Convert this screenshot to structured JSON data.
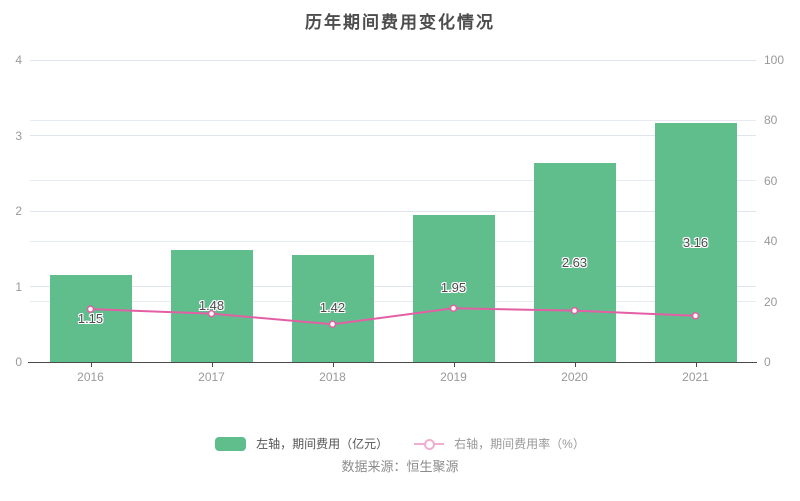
{
  "title": "历年期间费用变化情况",
  "legend": {
    "bar_label": "左轴，期间费用（亿元）",
    "line_label": "右轴，期间费用率（%）"
  },
  "footer": {
    "source": "数据来源：恒生聚源"
  },
  "chart_data": {
    "type": "bar",
    "subtype": "combo bar + line, dual y-axis",
    "title": "历年期间费用变化情况",
    "categories": [
      "2016",
      "2017",
      "2018",
      "2019",
      "2020",
      "2021"
    ],
    "series": [
      {
        "name": "左轴，期间费用（亿元）",
        "type": "bar",
        "y_axis": "left",
        "values": [
          1.15,
          1.48,
          1.42,
          1.95,
          2.63,
          3.16
        ],
        "data_labels": [
          "1.15",
          "1.48",
          "1.42",
          "1.95",
          "2.63",
          "3.16"
        ],
        "color": "#5fbe8c"
      },
      {
        "name": "右轴，期间费用率（%）",
        "type": "line",
        "y_axis": "right",
        "values": [
          17.5,
          16.0,
          12.5,
          17.8,
          17.0,
          15.3
        ],
        "values_estimated_from_gridlines": true,
        "color": "#e35fa5",
        "marker": "open-circle"
      }
    ],
    "left_axis": {
      "range": [
        0,
        4
      ],
      "ticks": [
        0,
        1,
        2,
        3,
        4
      ]
    },
    "right_axis": {
      "range": [
        0,
        100
      ],
      "ticks": [
        0,
        20,
        40,
        60,
        80,
        100
      ]
    },
    "grid": true,
    "legend_position": "bottom"
  },
  "colors": {
    "bar": "#5fbe8c",
    "line": "#e35fa5",
    "grid_left": "#dfe4f0",
    "grid_right": "#e6eaf4",
    "axis_line": "#4a4a4a",
    "tick_label": "#999999",
    "title": "#4d4d4d",
    "value_label": "#4c4c4c",
    "footer": "#8c8c8c"
  }
}
